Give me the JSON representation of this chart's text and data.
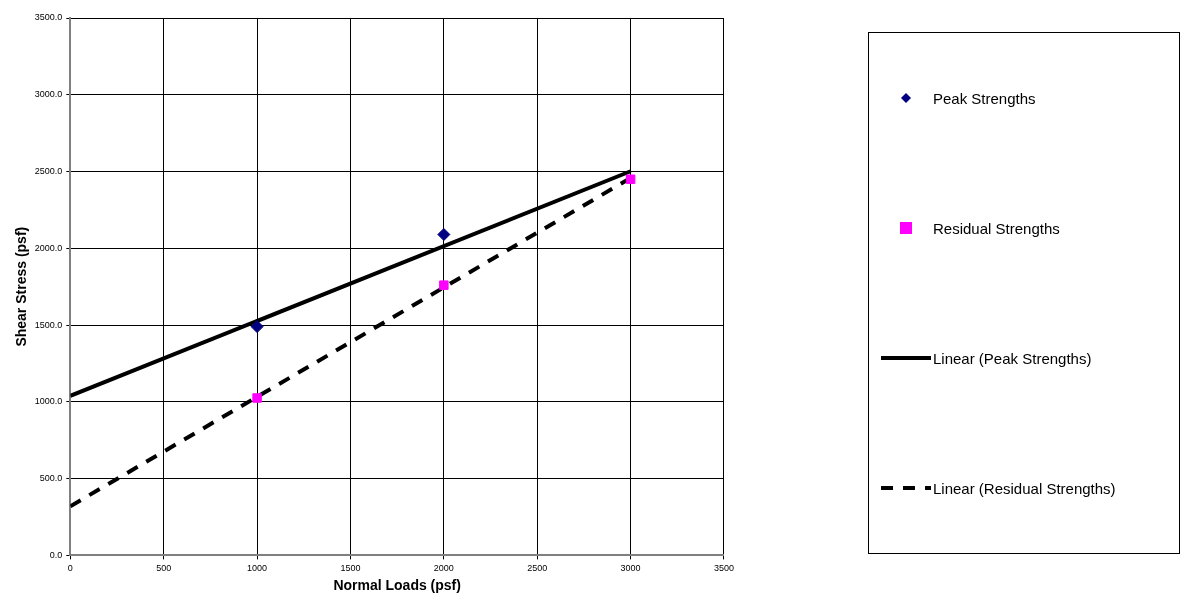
{
  "chart_data": {
    "type": "scatter",
    "xlabel": "Normal Loads (psf)",
    "ylabel": "Shear Stress (psf)",
    "xlim": [
      0,
      3500
    ],
    "xticks": [
      0,
      500,
      1000,
      1500,
      2000,
      2500,
      3000,
      3500
    ],
    "ylim": [
      0,
      3500
    ],
    "yticks": [
      {
        "value": 0,
        "label": "0.0"
      },
      {
        "value": 500,
        "label": "500.0"
      },
      {
        "value": 1000,
        "label": "1000.0"
      },
      {
        "value": 1500,
        "label": "1500.0"
      },
      {
        "value": 2000,
        "label": "2000.0"
      },
      {
        "value": 2500,
        "label": "2500.0"
      },
      {
        "value": 3000,
        "label": "3000.0"
      },
      {
        "value": 3500,
        "label": "3500.0"
      }
    ],
    "grid": true,
    "legend": "right",
    "series": [
      {
        "name": "Peak Strengths",
        "marker": "diamond",
        "color": "#000080",
        "x": [
          1000,
          2000
        ],
        "values": [
          1490,
          2090
        ]
      },
      {
        "name": "Residual Strengths",
        "marker": "square",
        "color": "#ff00ff",
        "x": [
          1000,
          2000,
          3000
        ],
        "values": [
          1025,
          1760,
          2450
        ]
      },
      {
        "name": "Linear (Peak Strengths)",
        "type": "line",
        "marker": "none",
        "line_style": "solid",
        "color": "#000000",
        "x": [
          0,
          3000
        ],
        "values": [
          1039,
          2502
        ]
      },
      {
        "name": "Linear (Residual Strengths)",
        "type": "line",
        "marker": "none",
        "line_style": "dashed",
        "color": "#000000",
        "x": [
          0,
          3000
        ],
        "values": [
          320,
          2458
        ]
      }
    ]
  }
}
